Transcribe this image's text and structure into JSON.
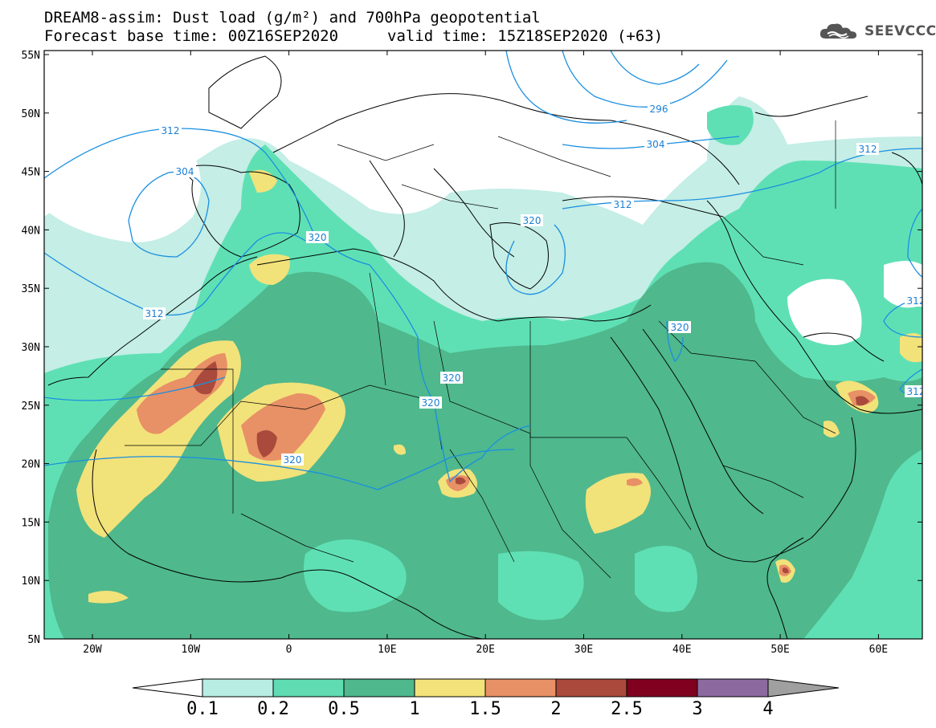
{
  "title": {
    "line1": "DREAM8-assim: Dust load (g/m²) and 700hPa geopotential",
    "line2_left": "Forecast base time: 00Z16SEP2020",
    "line2_right": "valid time: 15Z18SEP2020 (+63)"
  },
  "logo": {
    "text": "SEEVCCC",
    "icon": "cloud-icon"
  },
  "axes": {
    "lat_labels": [
      "55N",
      "50N",
      "45N",
      "40N",
      "35N",
      "30N",
      "25N",
      "20N",
      "15N",
      "10N",
      "5N"
    ],
    "lon_labels": [
      "20W",
      "10W",
      "0",
      "10E",
      "20E",
      "30E",
      "40E",
      "50E",
      "60E"
    ]
  },
  "contour_labels": [
    "312",
    "304",
    "296",
    "304",
    "312",
    "312",
    "320",
    "320",
    "320",
    "320",
    "320",
    "312",
    "320",
    "312",
    "312"
  ],
  "colorbar": {
    "ticks": [
      "0.1",
      "0.2",
      "0.5",
      "1",
      "1.5",
      "2",
      "2.5",
      "3",
      "4"
    ],
    "colors": [
      "#ffffff",
      "#b8ede3",
      "#5fdcb2",
      "#4fb88d",
      "#f2e27a",
      "#e89066",
      "#aa4a3c",
      "#800020",
      "#8c6aa0",
      "#a0a0a0"
    ]
  },
  "colors": {
    "contour": "#1a8fe0",
    "very_light": "#c4eee6",
    "light": "#5fe0b4",
    "medium": "#4fb88d",
    "yellow": "#f2e27a",
    "orange": "#e89066",
    "red": "#aa4a3c"
  }
}
